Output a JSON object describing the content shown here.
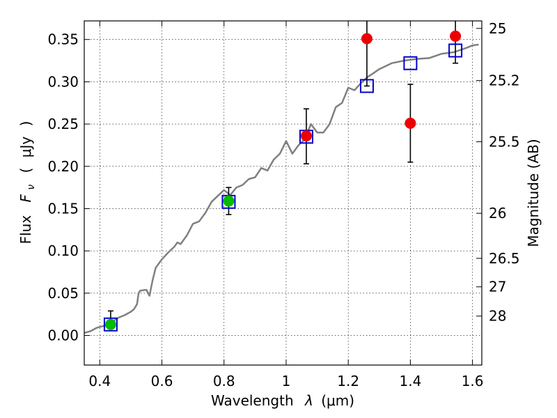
{
  "chart_data": {
    "type": "scatter",
    "title": "",
    "xlabel": "Wavelength  λ (μm)",
    "ylabel": "Flux  F_ν  ( μJy )",
    "ylabel_parts": {
      "prefix": "Flux",
      "symbol": "F",
      "subscript": "ν",
      "open": "(",
      "unit": "μJy",
      "close": ")"
    },
    "xlabel_parts": {
      "prefix": "Wavelength",
      "symbol": "λ",
      "unit": "(μm)"
    },
    "y2label": "Magnitude (AB)",
    "xlim": [
      0.35,
      1.63
    ],
    "ylim": [
      -0.035,
      0.372
    ],
    "grid": true,
    "x_ticks": [
      {
        "value": 0.4,
        "label": "0.4"
      },
      {
        "value": 0.6,
        "label": "0.6"
      },
      {
        "value": 0.8,
        "label": "0.8"
      },
      {
        "value": 1.0,
        "label": "1"
      },
      {
        "value": 1.2,
        "label": "1.2"
      },
      {
        "value": 1.4,
        "label": "1.4"
      },
      {
        "value": 1.6,
        "label": "1.6"
      }
    ],
    "y_ticks": [
      {
        "value": 0.0,
        "label": "0.00"
      },
      {
        "value": 0.05,
        "label": "0.05"
      },
      {
        "value": 0.1,
        "label": "0.10"
      },
      {
        "value": 0.15,
        "label": "0.15"
      },
      {
        "value": 0.2,
        "label": "0.20"
      },
      {
        "value": 0.25,
        "label": "0.25"
      },
      {
        "value": 0.3,
        "label": "0.30"
      },
      {
        "value": 0.35,
        "label": "0.35"
      }
    ],
    "y2_ticks": [
      {
        "flux": 0.3631,
        "label": "25"
      },
      {
        "flux": 0.3015,
        "label": "25.2"
      },
      {
        "flux": 0.2291,
        "label": "25.5"
      },
      {
        "flux": 0.1445,
        "label": "26"
      },
      {
        "flux": 0.0912,
        "label": "26.5"
      },
      {
        "flux": 0.0575,
        "label": "27"
      },
      {
        "flux": 0.0229,
        "label": "28"
      }
    ],
    "series": [
      {
        "type": "line",
        "color": "#808080",
        "x": [
          0.35,
          0.37,
          0.39,
          0.41,
          0.43,
          0.44,
          0.46,
          0.48,
          0.5,
          0.51,
          0.52,
          0.525,
          0.53,
          0.55,
          0.56,
          0.57,
          0.58,
          0.6,
          0.62,
          0.64,
          0.65,
          0.66,
          0.68,
          0.7,
          0.72,
          0.74,
          0.76,
          0.78,
          0.8,
          0.82,
          0.84,
          0.86,
          0.88,
          0.9,
          0.92,
          0.94,
          0.96,
          0.98,
          1.0,
          1.02,
          1.04,
          1.06,
          1.08,
          1.1,
          1.12,
          1.14,
          1.16,
          1.18,
          1.2,
          1.22,
          1.24,
          1.26,
          1.28,
          1.3,
          1.34,
          1.38,
          1.42,
          1.46,
          1.5,
          1.54,
          1.58,
          1.6,
          1.62
        ],
        "y": [
          0.003,
          0.005,
          0.009,
          0.011,
          0.013,
          0.016,
          0.021,
          0.024,
          0.028,
          0.031,
          0.037,
          0.05,
          0.053,
          0.054,
          0.047,
          0.065,
          0.08,
          0.09,
          0.098,
          0.105,
          0.11,
          0.108,
          0.118,
          0.132,
          0.135,
          0.145,
          0.158,
          0.165,
          0.172,
          0.166,
          0.175,
          0.178,
          0.185,
          0.187,
          0.198,
          0.195,
          0.208,
          0.215,
          0.23,
          0.215,
          0.225,
          0.232,
          0.25,
          0.24,
          0.24,
          0.25,
          0.27,
          0.275,
          0.293,
          0.29,
          0.298,
          0.305,
          0.31,
          0.315,
          0.322,
          0.325,
          0.327,
          0.328,
          0.333,
          0.335,
          0.34,
          0.343,
          0.344
        ]
      },
      {
        "type": "open-square",
        "color": "#0000cc",
        "x": [
          0.435,
          0.815,
          1.065,
          1.26,
          1.4,
          1.545
        ],
        "y": [
          0.013,
          0.158,
          0.235,
          0.295,
          0.322,
          0.337
        ]
      },
      {
        "type": "filled-circle",
        "color": "#00bb00",
        "x": [
          0.435,
          0.815
        ],
        "y": [
          0.013,
          0.159
        ],
        "yerr_low": [
          0.011,
          0.143
        ],
        "yerr_high": [
          0.029,
          0.175
        ]
      },
      {
        "type": "filled-circle",
        "color": "#ee0000",
        "x": [
          1.065,
          1.26,
          1.4,
          1.545
        ],
        "y": [
          0.236,
          0.351,
          0.251,
          0.354
        ],
        "yerr_low": [
          0.203,
          0.295,
          0.205,
          0.322
        ],
        "yerr_high": [
          0.268,
          0.372,
          0.297,
          0.372
        ]
      }
    ]
  }
}
